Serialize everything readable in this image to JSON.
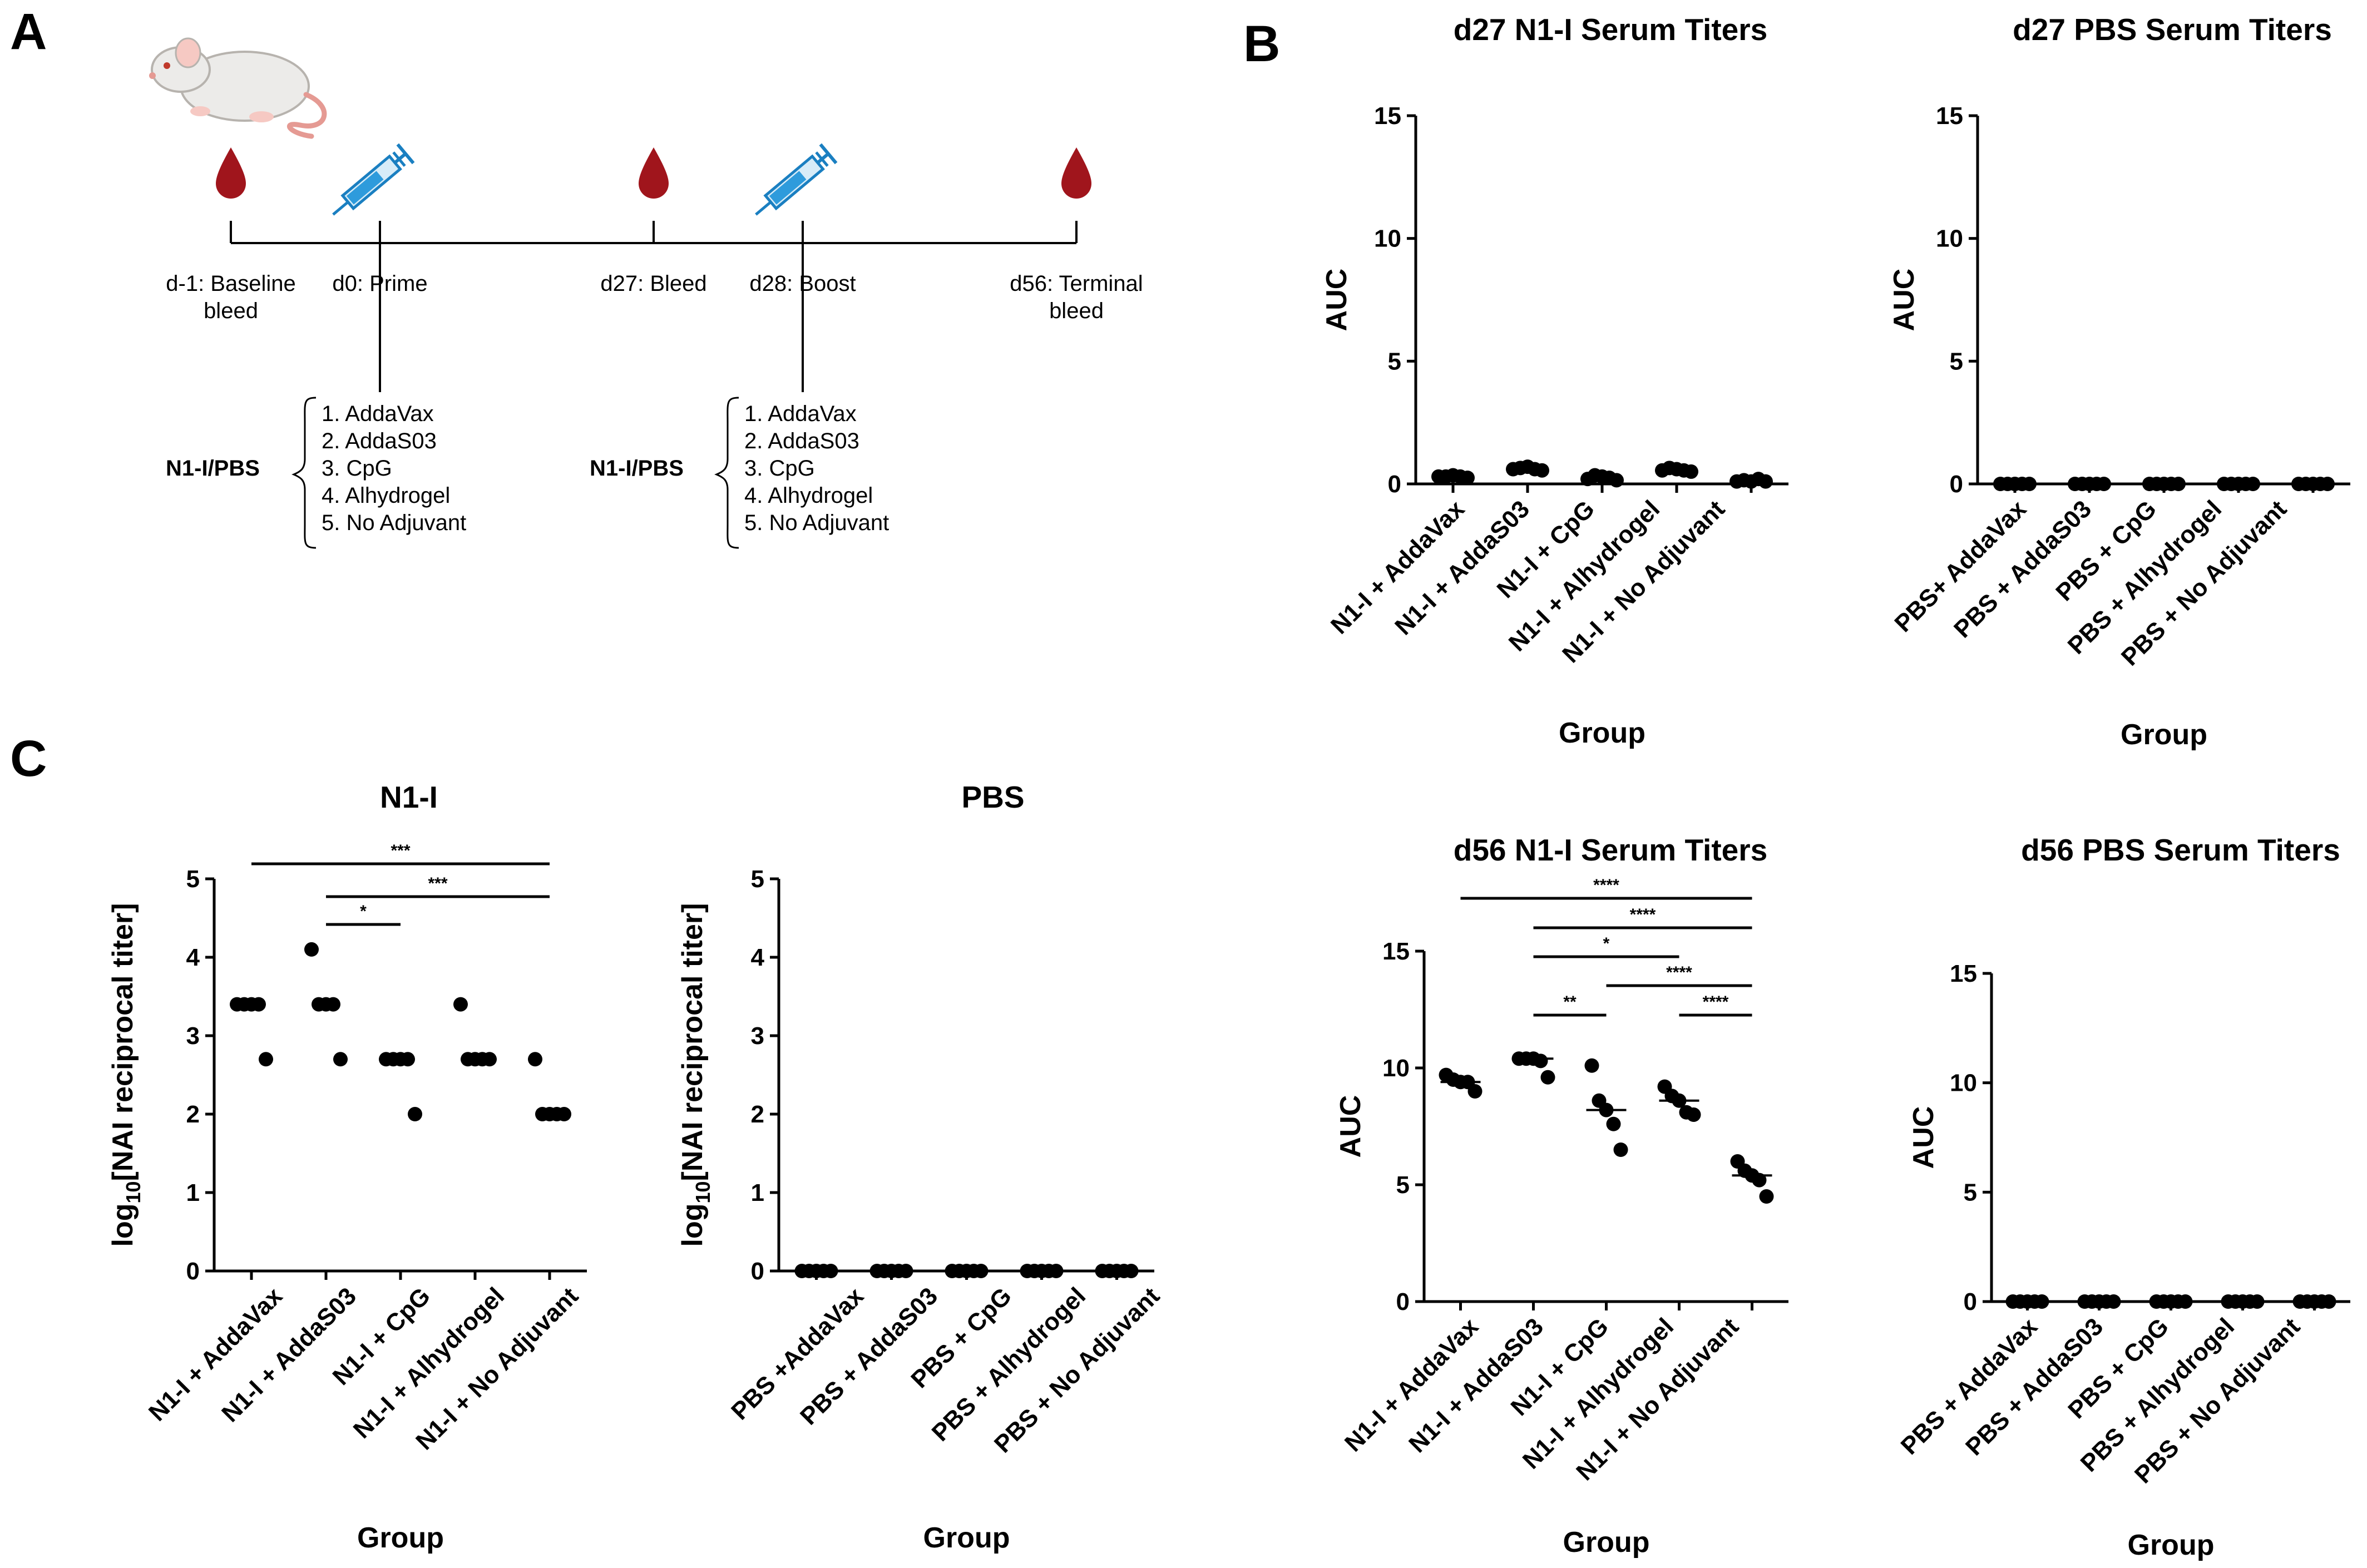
{
  "panels": {
    "A": "A",
    "B": "B",
    "C": "C"
  },
  "timeline": {
    "points": [
      {
        "label1": "d-1: Baseline",
        "label2": "bleed",
        "icon": "blood-drop-icon"
      },
      {
        "label1": "d0: Prime",
        "label2": "",
        "icon": "syringe-icon"
      },
      {
        "label1": "d27: Bleed",
        "label2": "",
        "icon": "blood-drop-icon"
      },
      {
        "label1": "d28: Boost",
        "label2": "",
        "icon": "syringe-icon"
      },
      {
        "label1": "d56: Terminal",
        "label2": "bleed",
        "icon": "blood-drop-icon"
      }
    ],
    "group_label": "N1-I/PBS",
    "adjuvant_list": [
      "1.  AddaVax",
      "2.  AddaS03",
      "3.  CpG",
      "4.  Alhydrogel",
      "5.  No Adjuvant"
    ],
    "animal_icon": "mouse-icon"
  },
  "colors": {
    "ink": "#000000",
    "blood": "#a0151c",
    "syringe": "#1a7fc1"
  },
  "chart_data": [
    {
      "id": "b_d27_n1",
      "type": "scatter",
      "title": "d27 N1-I Serum Titers",
      "xlabel": "Group",
      "ylabel": "AUC",
      "ylim": [
        0,
        15
      ],
      "yticks": [
        0,
        5,
        10,
        15
      ],
      "categories": [
        "N1-I + AddaVax",
        "N1-I + AddaS03",
        "N1-I + CpG",
        "N1-I + Alhydrogel",
        "N1-I + No Adjuvant"
      ],
      "series": [
        {
          "name": "N1-I + AddaVax",
          "values": [
            0.3,
            0.3,
            0.35,
            0.3,
            0.25
          ]
        },
        {
          "name": "N1-I + AddaS03",
          "values": [
            0.6,
            0.65,
            0.7,
            0.6,
            0.55
          ]
        },
        {
          "name": "N1-I + CpG",
          "values": [
            0.2,
            0.35,
            0.3,
            0.25,
            0.15
          ]
        },
        {
          "name": "N1-I + Alhydrogel",
          "values": [
            0.55,
            0.65,
            0.6,
            0.55,
            0.5
          ]
        },
        {
          "name": "N1-I + No Adjuvant",
          "values": [
            0.1,
            0.15,
            0.1,
            0.2,
            0.1
          ]
        }
      ],
      "significance": []
    },
    {
      "id": "b_d27_pbs",
      "type": "scatter",
      "title": "d27 PBS Serum Titers",
      "xlabel": "Group",
      "ylabel": "AUC",
      "ylim": [
        0,
        15
      ],
      "yticks": [
        0,
        5,
        10,
        15
      ],
      "categories": [
        "PBS+ AddaVax",
        "PBS + AddaS03",
        "PBS + CpG",
        "PBS + Alhydrogel",
        "PBS + No Adjuvant"
      ],
      "series": [
        {
          "name": "PBS+ AddaVax",
          "values": [
            0,
            0,
            0,
            0,
            0
          ]
        },
        {
          "name": "PBS + AddaS03",
          "values": [
            0,
            0,
            0,
            0,
            0
          ]
        },
        {
          "name": "PBS + CpG",
          "values": [
            0,
            0,
            0,
            0,
            0
          ]
        },
        {
          "name": "PBS + Alhydrogel",
          "values": [
            0,
            0,
            0,
            0,
            0
          ]
        },
        {
          "name": "PBS + No Adjuvant",
          "values": [
            0,
            0,
            0,
            0,
            0
          ]
        }
      ],
      "significance": []
    },
    {
      "id": "b_d56_n1",
      "type": "scatter",
      "title": "d56 N1-I Serum Titers",
      "xlabel": "Group",
      "ylabel": "AUC",
      "ylim": [
        0,
        15
      ],
      "yticks": [
        0,
        5,
        10,
        15
      ],
      "categories": [
        "N1-I + AddaVax",
        "N1-I + AddaS03",
        "N1-I + CpG",
        "N1-I + Alhydrogel",
        "N1-I + No Adjuvant"
      ],
      "series": [
        {
          "name": "N1-I + AddaVax",
          "values": [
            9.7,
            9.5,
            9.4,
            9.4,
            9.0
          ],
          "median": 9.4
        },
        {
          "name": "N1-I + AddaS03",
          "values": [
            10.4,
            10.4,
            10.4,
            10.3,
            9.6
          ],
          "median": 10.4
        },
        {
          "name": "N1-I + CpG",
          "values": [
            10.1,
            8.6,
            8.2,
            7.6,
            6.5
          ],
          "median": 8.2
        },
        {
          "name": "N1-I + Alhydrogel",
          "values": [
            9.2,
            8.8,
            8.6,
            8.1,
            8.0
          ],
          "median": 8.6
        },
        {
          "name": "N1-I + No Adjuvant",
          "values": [
            6.0,
            5.6,
            5.4,
            5.2,
            4.5
          ],
          "median": 5.4
        }
      ],
      "significance": [
        {
          "from": 0,
          "to": 4,
          "label": "****"
        },
        {
          "from": 1,
          "to": 4,
          "label": "****"
        },
        {
          "from": 1,
          "to": 3,
          "label": "*"
        },
        {
          "from": 2,
          "to": 4,
          "label": "****"
        },
        {
          "from": 1,
          "to": 2,
          "label": "**"
        },
        {
          "from": 3,
          "to": 4,
          "label": "****"
        }
      ]
    },
    {
      "id": "b_d56_pbs",
      "type": "scatter",
      "title": "d56 PBS Serum Titers",
      "xlabel": "Group",
      "ylabel": "AUC",
      "ylim": [
        0,
        15
      ],
      "yticks": [
        0,
        5,
        10,
        15
      ],
      "categories": [
        "PBS + AddaVax",
        "PBS + AddaS03",
        "PBS + CpG",
        "PBS + Alhydrogel",
        "PBS + No Adjuvant"
      ],
      "series": [
        {
          "name": "PBS + AddaVax",
          "values": [
            0,
            0,
            0,
            0,
            0
          ]
        },
        {
          "name": "PBS + AddaS03",
          "values": [
            0,
            0,
            0,
            0,
            0
          ]
        },
        {
          "name": "PBS + CpG",
          "values": [
            0,
            0,
            0,
            0,
            0
          ]
        },
        {
          "name": "PBS + Alhydrogel",
          "values": [
            0,
            0,
            0,
            0,
            0
          ]
        },
        {
          "name": "PBS + No Adjuvant",
          "values": [
            0,
            0,
            0,
            0,
            0
          ]
        }
      ],
      "significance": []
    },
    {
      "id": "c_n1",
      "type": "scatter",
      "title": "N1-I",
      "xlabel": "Group",
      "ylabel": "log10[NAI reciprocal titer]",
      "ylabel_parts": {
        "pre": "log",
        "sub": "10",
        "post": "[NAI reciprocal titer]"
      },
      "ylim": [
        0,
        5
      ],
      "yticks": [
        0,
        1,
        2,
        3,
        4,
        5
      ],
      "categories": [
        "N1-I + AddaVax",
        "N1-I + AddaS03",
        "N1-I + CpG",
        "N1-I + Alhydrogel",
        "N1-I + No Adjuvant"
      ],
      "series": [
        {
          "name": "N1-I + AddaVax",
          "values": [
            3.4,
            3.4,
            3.4,
            3.4,
            2.7
          ]
        },
        {
          "name": "N1-I + AddaS03",
          "values": [
            4.1,
            3.4,
            3.4,
            3.4,
            2.7
          ]
        },
        {
          "name": "N1-I + CpG",
          "values": [
            2.7,
            2.7,
            2.7,
            2.7,
            2.0
          ]
        },
        {
          "name": "N1-I + Alhydrogel",
          "values": [
            3.4,
            2.7,
            2.7,
            2.7,
            2.7
          ]
        },
        {
          "name": "N1-I + No Adjuvant",
          "values": [
            2.7,
            2.0,
            2.0,
            2.0,
            2.0
          ]
        }
      ],
      "significance": [
        {
          "from": 0,
          "to": 4,
          "label": "***"
        },
        {
          "from": 1,
          "to": 4,
          "label": "***"
        },
        {
          "from": 1,
          "to": 2,
          "label": "*"
        }
      ]
    },
    {
      "id": "c_pbs",
      "type": "scatter",
      "title": "PBS",
      "xlabel": "Group",
      "ylabel": "log10[NAI reciprocal titer]",
      "ylabel_parts": {
        "pre": "log",
        "sub": "10",
        "post": "[NAI reciprocal titer]"
      },
      "ylim": [
        0,
        5
      ],
      "yticks": [
        0,
        1,
        2,
        3,
        4,
        5
      ],
      "categories": [
        "PBS +AddaVax",
        "PBS + AddaS03",
        "PBS + CpG",
        "PBS + Alhydrogel",
        "PBS + No Adjuvant"
      ],
      "series": [
        {
          "name": "PBS +AddaVax",
          "values": [
            0,
            0,
            0,
            0,
            0
          ]
        },
        {
          "name": "PBS + AddaS03",
          "values": [
            0,
            0,
            0,
            0,
            0
          ]
        },
        {
          "name": "PBS + CpG",
          "values": [
            0,
            0,
            0,
            0,
            0
          ]
        },
        {
          "name": "PBS + Alhydrogel",
          "values": [
            0,
            0,
            0,
            0,
            0
          ]
        },
        {
          "name": "PBS + No Adjuvant",
          "values": [
            0,
            0,
            0,
            0,
            0
          ]
        }
      ],
      "significance": []
    }
  ]
}
